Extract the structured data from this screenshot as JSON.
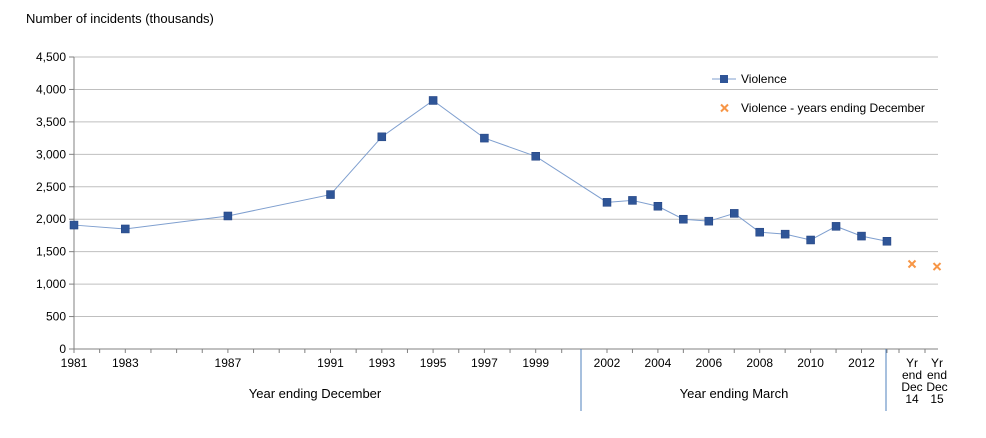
{
  "chart_data": {
    "type": "line",
    "ylabel": "Number of incidents (thousands)",
    "ylim": [
      0,
      4500
    ],
    "yticks": [
      "0",
      "500",
      "1,000",
      "1,500",
      "2,000",
      "2,500",
      "3,000",
      "3,500",
      "4,000",
      "4,500"
    ],
    "grid": true,
    "legend_position": "top-right",
    "x_ticks": [
      {
        "x": 1981,
        "label": "1981"
      },
      {
        "x": 1983,
        "label": "1983"
      },
      {
        "x": 1987,
        "label": "1987"
      },
      {
        "x": 1991,
        "label": "1991"
      },
      {
        "x": 1993,
        "label": "1993"
      },
      {
        "x": 1995,
        "label": "1995"
      },
      {
        "x": 1997,
        "label": "1997"
      },
      {
        "x": 1999,
        "label": "1999"
      },
      {
        "x": 2002,
        "label": "2002"
      },
      {
        "x": 2004,
        "label": "2004"
      },
      {
        "x": 2006,
        "label": "2006"
      },
      {
        "x": 2008,
        "label": "2008"
      },
      {
        "x": 2010,
        "label": "2010"
      },
      {
        "x": 2012,
        "label": "2012"
      },
      {
        "x": "Yr end Dec 14",
        "label": [
          "Yr",
          "end",
          "Dec",
          "14"
        ]
      },
      {
        "x": "Yr end Dec 15",
        "label": [
          "Yr",
          "end",
          "Dec",
          "15"
        ]
      }
    ],
    "group_labels": [
      "Year ending December",
      "Year ending March"
    ],
    "series": [
      {
        "name": "Violence",
        "color": "#2F5597",
        "marker": "square",
        "x": [
          1981,
          1983,
          1987,
          1991,
          1993,
          1995,
          1997,
          1999,
          2002,
          2003,
          2004,
          2005,
          2006,
          2007,
          2008,
          2009,
          2010,
          2011,
          2012,
          2013
        ],
        "values": [
          1910,
          1850,
          2050,
          2380,
          3270,
          3830,
          3250,
          2970,
          2260,
          2290,
          2200,
          2000,
          1970,
          2090,
          1800,
          1770,
          1680,
          1890,
          1740,
          1660
        ]
      },
      {
        "name": "Violence - years ending December",
        "color": "#F79646",
        "marker": "x",
        "x": [
          "Yr end Dec 14",
          "Yr end Dec 15"
        ],
        "values": [
          1310,
          1270
        ]
      }
    ]
  }
}
